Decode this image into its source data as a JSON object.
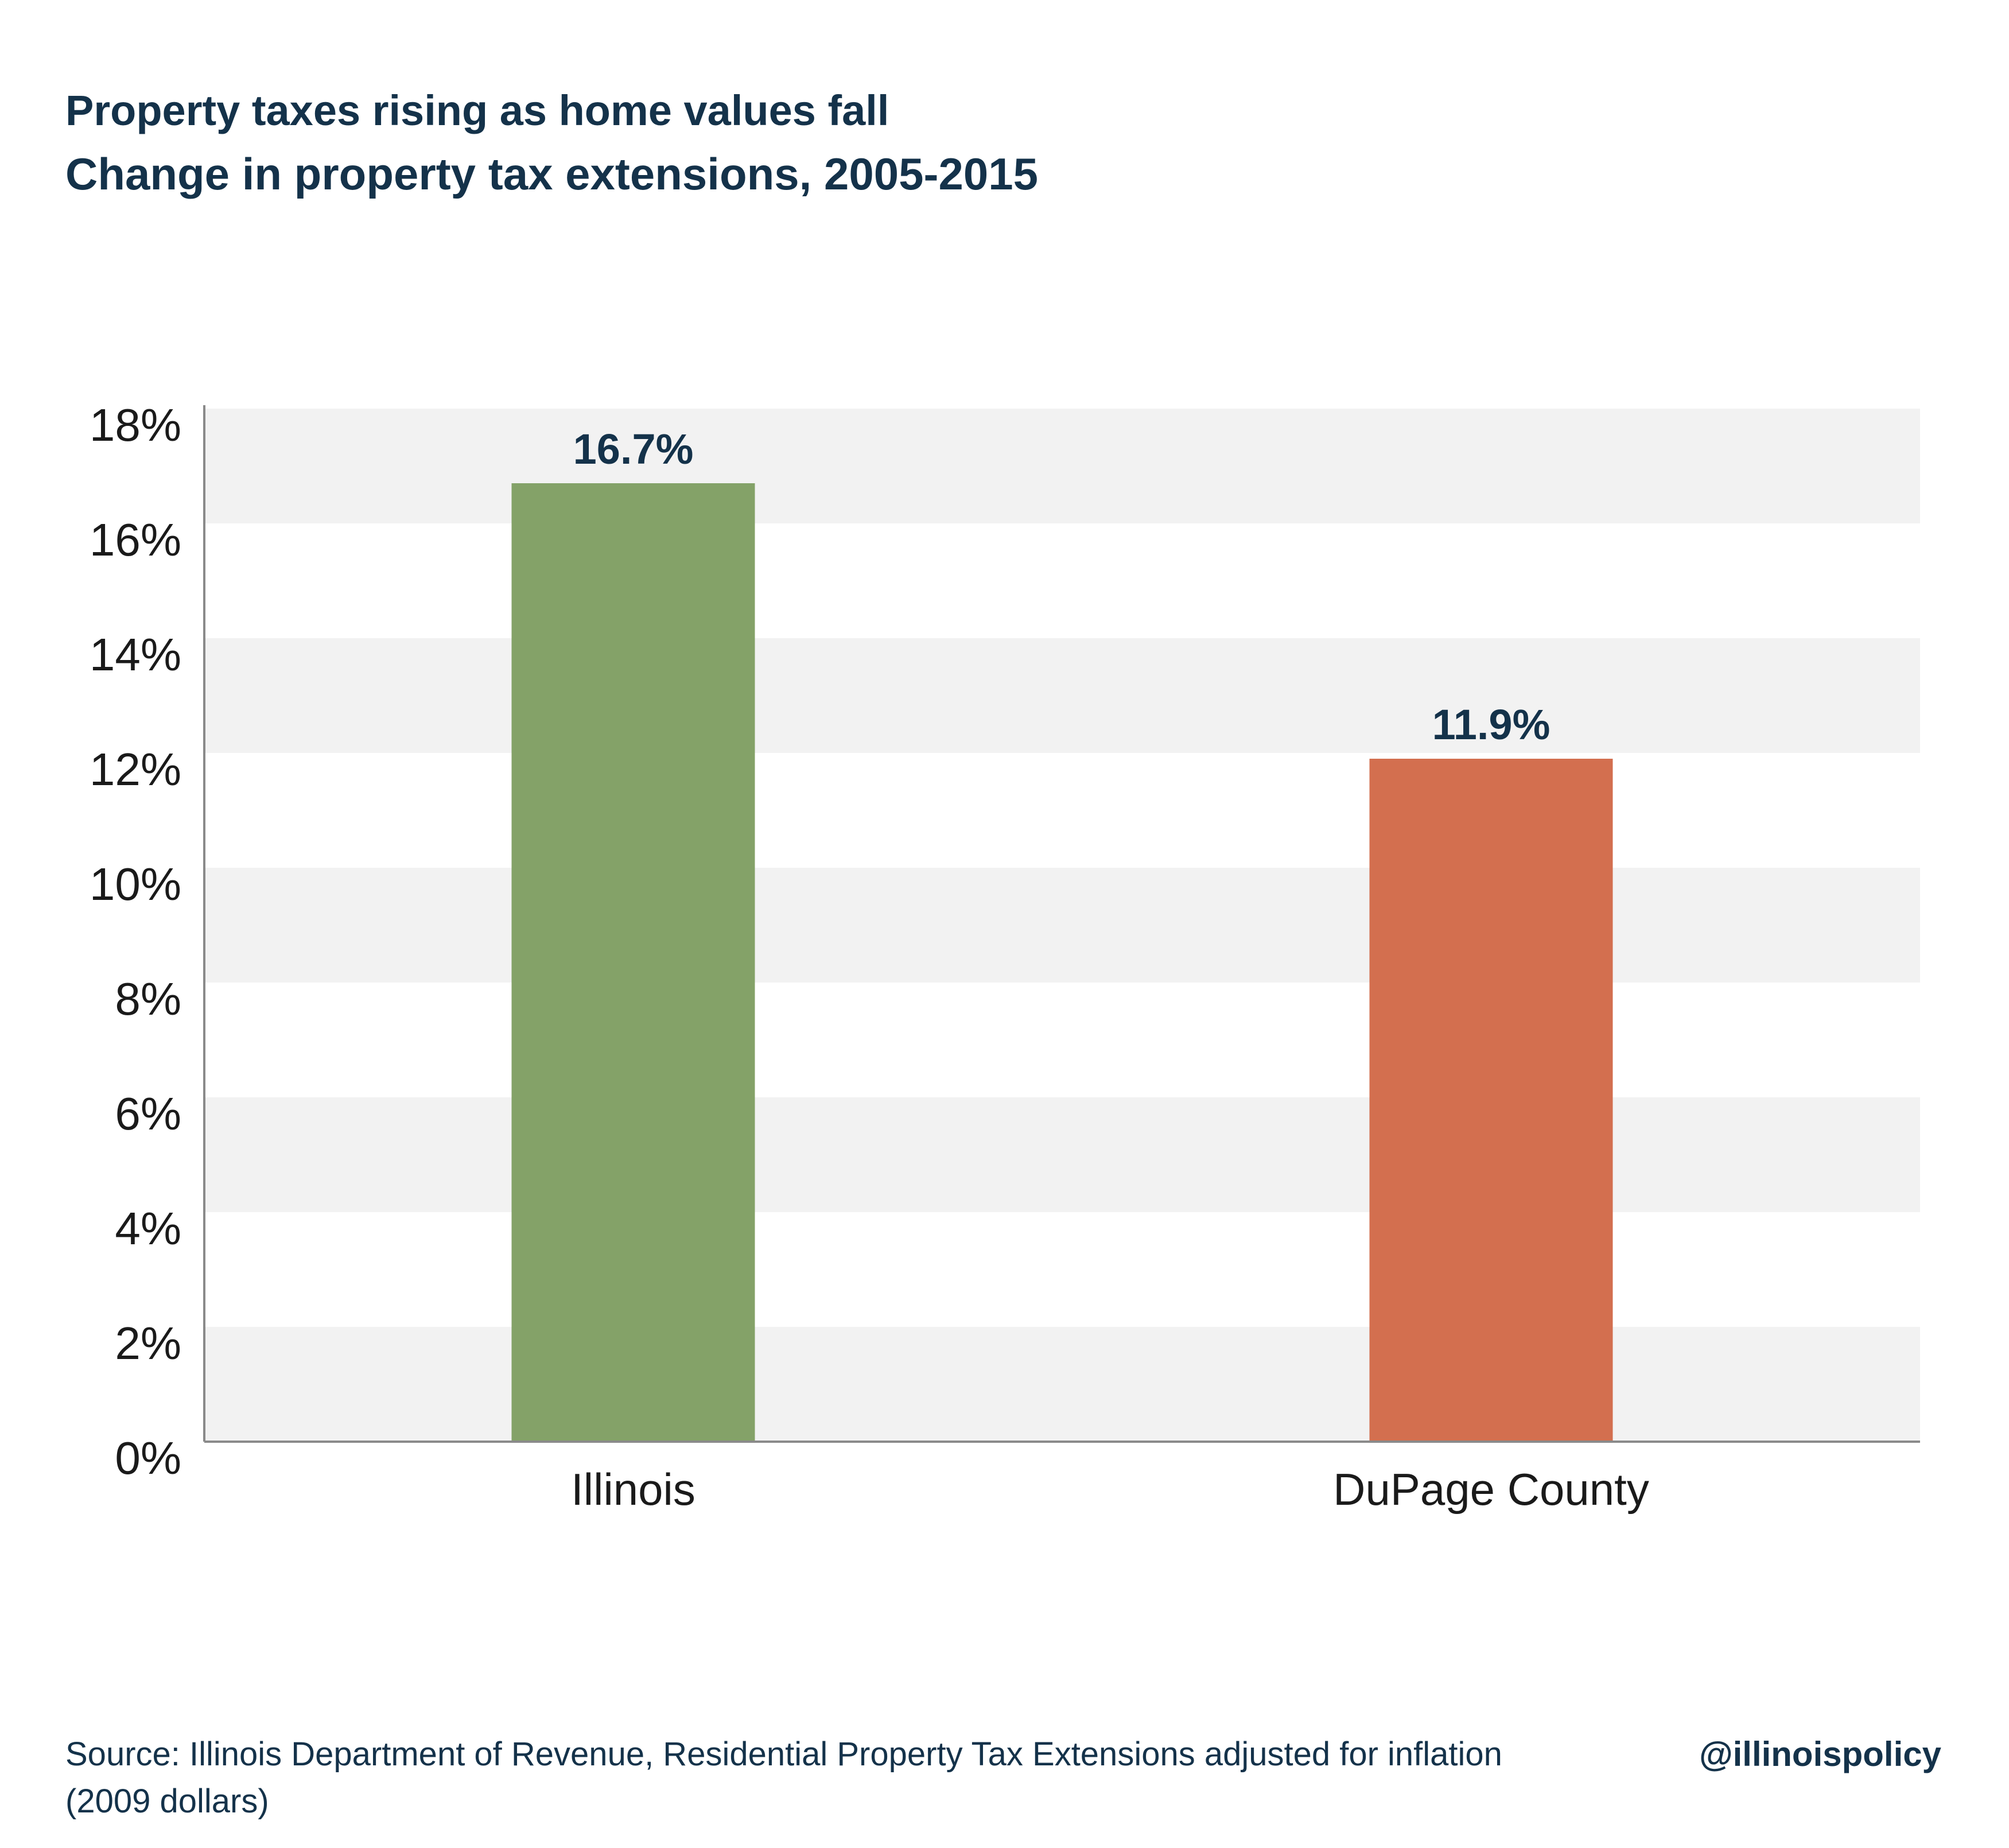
{
  "header": {
    "title": "Property taxes rising as home values fall",
    "subtitle": "Change in property tax extensions, 2005-2015"
  },
  "footer": {
    "source": "Source:  Illinois Department of Revenue, Residential Property Tax Extensions adjusted for inflation (2009 dollars)",
    "handle": "@illinoispolicy"
  },
  "chart_data": {
    "type": "bar",
    "title": "Property taxes rising as home values fall",
    "subtitle": "Change in property tax extensions, 2005-2015",
    "categories": [
      "Illinois",
      "DuPage County"
    ],
    "values": [
      16.7,
      11.9
    ],
    "data_labels": [
      "16.7%",
      "11.9%"
    ],
    "bar_colors": [
      "#84a268",
      "#d36f4f"
    ],
    "xlabel": "",
    "ylabel": "",
    "ylim": [
      0,
      18
    ],
    "y_ticks": [
      0,
      2,
      4,
      6,
      8,
      10,
      12,
      14,
      16,
      18
    ],
    "y_tick_labels": [
      "0%",
      "2%",
      "4%",
      "6%",
      "8%",
      "10%",
      "12%",
      "14%",
      "16%",
      "18%"
    ],
    "grid": "alternating horizontal bands",
    "legend": "none"
  },
  "colors": {
    "text": "#14324a",
    "band": "#f2f2f2",
    "axis": "#8a8a8a"
  }
}
